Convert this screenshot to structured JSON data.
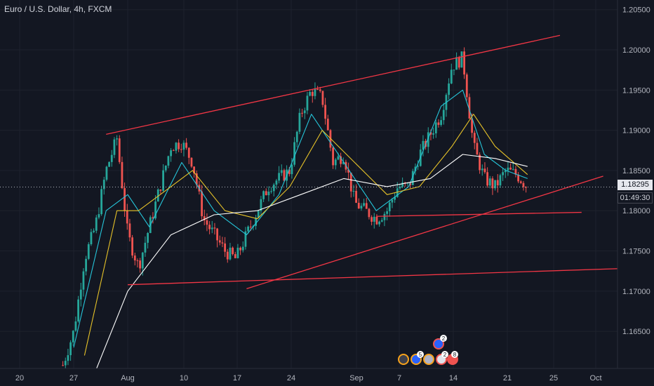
{
  "header": {
    "title": "Euro / U.S. Dollar, 4h, FXCM"
  },
  "price_axis": {
    "current_price": "1.18295",
    "countdown": "01:49:30",
    "ticks": [
      "1.20500",
      "1.20000",
      "1.19500",
      "1.19000",
      "1.18500",
      "1.18000",
      "1.17500",
      "1.17000",
      "1.16500"
    ]
  },
  "time_axis": {
    "ticks": [
      "20",
      "27",
      "Aug",
      "10",
      "17",
      "24",
      "Sep",
      "7",
      "14",
      "21",
      "25",
      "Oct"
    ]
  },
  "event_icons": {
    "badges": [
      "2",
      "5",
      "2",
      "8"
    ]
  },
  "colors": {
    "background": "#131722",
    "up_candle": "#26a69a",
    "down_candle": "#ef5350",
    "trendline": "#f23645",
    "ma_fast": "#26c6da",
    "ma_mid": "#e6c229",
    "ma_slow": "#ffffff"
  },
  "chart_data": {
    "type": "candlestick",
    "symbol": "Euro / U.S. Dollar",
    "interval": "4h",
    "source": "FXCM",
    "ylim": [
      1.161,
      1.2055
    ],
    "y_ticks": [
      1.165,
      1.17,
      1.175,
      1.18,
      1.185,
      1.19,
      1.195,
      1.2,
      1.205
    ],
    "current_price": 1.18295,
    "close_path": [
      [
        "Jul 26",
        1.1608
      ],
      [
        "Jul 27",
        1.165
      ],
      [
        "Jul 28",
        1.174
      ],
      [
        "Jul 29",
        1.178
      ],
      [
        "Jul 30",
        1.185
      ],
      [
        "Jul 31",
        1.189
      ],
      [
        "Aug 1",
        1.177
      ],
      [
        "Aug 2",
        1.173
      ],
      [
        "Aug 3",
        1.178
      ],
      [
        "Aug 5",
        1.188
      ],
      [
        "Aug 6",
        1.1885
      ],
      [
        "Aug 7",
        1.186
      ],
      [
        "Aug 8",
        1.179
      ],
      [
        "Aug 10",
        1.175
      ],
      [
        "Aug 11",
        1.174
      ],
      [
        "Aug 12",
        1.177
      ],
      [
        "Aug 13",
        1.18
      ],
      [
        "Aug 14",
        1.183
      ],
      [
        "Aug 16",
        1.185
      ],
      [
        "Aug 17",
        1.192
      ],
      [
        "Aug 18",
        1.195
      ],
      [
        "Aug 19",
        1.194
      ],
      [
        "Aug 20",
        1.186
      ],
      [
        "Aug 21",
        1.187
      ],
      [
        "Aug 22",
        1.181
      ],
      [
        "Aug 24",
        1.179
      ],
      [
        "Aug 25",
        1.18
      ],
      [
        "Aug 26",
        1.183
      ],
      [
        "Aug 27",
        1.183
      ],
      [
        "Aug 28",
        1.187
      ],
      [
        "Aug 30",
        1.192
      ],
      [
        "Aug 31",
        1.198
      ],
      [
        "Sep 1",
        1.199
      ],
      [
        "Sep 2",
        1.188
      ],
      [
        "Sep 3",
        1.184
      ],
      [
        "Sep 4",
        1.183
      ],
      [
        "Sep 5",
        1.185
      ],
      [
        "Sep 6",
        1.1845
      ],
      [
        "Sep 7",
        1.18295
      ]
    ],
    "moving_averages": [
      {
        "color": "cyan",
        "values": [
          [
            "Jul 27",
            1.163
          ],
          [
            "Jul 30",
            1.18
          ],
          [
            "Aug 1",
            1.182
          ],
          [
            "Aug 3",
            1.178
          ],
          [
            "Aug 6",
            1.186
          ],
          [
            "Aug 9",
            1.18
          ],
          [
            "Aug 12",
            1.177
          ],
          [
            "Aug 15",
            1.182
          ],
          [
            "Aug 18",
            1.192
          ],
          [
            "Aug 21",
            1.186
          ],
          [
            "Aug 24",
            1.18
          ],
          [
            "Aug 27",
            1.183
          ],
          [
            "Aug 30",
            1.193
          ],
          [
            "Sep 1",
            1.195
          ],
          [
            "Sep 3",
            1.187
          ],
          [
            "Sep 5",
            1.185
          ],
          [
            "Sep 7",
            1.184
          ]
        ]
      },
      {
        "color": "yellow",
        "values": [
          [
            "Jul 28",
            1.162
          ],
          [
            "Jul 31",
            1.18
          ],
          [
            "Aug 2",
            1.18
          ],
          [
            "Aug 5",
            1.183
          ],
          [
            "Aug 7",
            1.185
          ],
          [
            "Aug 10",
            1.18
          ],
          [
            "Aug 13",
            1.179
          ],
          [
            "Aug 16",
            1.183
          ],
          [
            "Aug 19",
            1.19
          ],
          [
            "Aug 22",
            1.186
          ],
          [
            "Aug 25",
            1.182
          ],
          [
            "Aug 28",
            1.183
          ],
          [
            "Aug 31",
            1.188
          ],
          [
            "Sep 2",
            1.192
          ],
          [
            "Sep 4",
            1.188
          ],
          [
            "Sep 7",
            1.1845
          ]
        ]
      },
      {
        "color": "white",
        "values": [
          [
            "Jul 29",
            1.16
          ],
          [
            "Aug 1",
            1.17
          ],
          [
            "Aug 5",
            1.177
          ],
          [
            "Aug 9",
            1.1795
          ],
          [
            "Aug 13",
            1.18
          ],
          [
            "Aug 17",
            1.182
          ],
          [
            "Aug 21",
            1.184
          ],
          [
            "Aug 25",
            1.183
          ],
          [
            "Aug 29",
            1.184
          ],
          [
            "Sep 1",
            1.187
          ],
          [
            "Sep 4",
            1.1865
          ],
          [
            "Sep 7",
            1.1855
          ]
        ]
      }
    ],
    "trendlines": [
      {
        "name": "channel-top",
        "from": [
          "Jul 30",
          1.1895
        ],
        "to": [
          "Sep 10",
          1.2018
        ]
      },
      {
        "name": "channel-bottom",
        "from": [
          "Aug 12",
          1.1703
        ],
        "to": [
          "Sep 14",
          1.1843
        ]
      },
      {
        "name": "support-lower",
        "from": [
          "Aug 1",
          1.1708
        ],
        "to": [
          "Sep 20",
          1.173
        ]
      },
      {
        "name": "support-upper",
        "from": [
          "Aug 24",
          1.1793
        ],
        "to": [
          "Sep 12",
          1.1798
        ]
      }
    ]
  }
}
